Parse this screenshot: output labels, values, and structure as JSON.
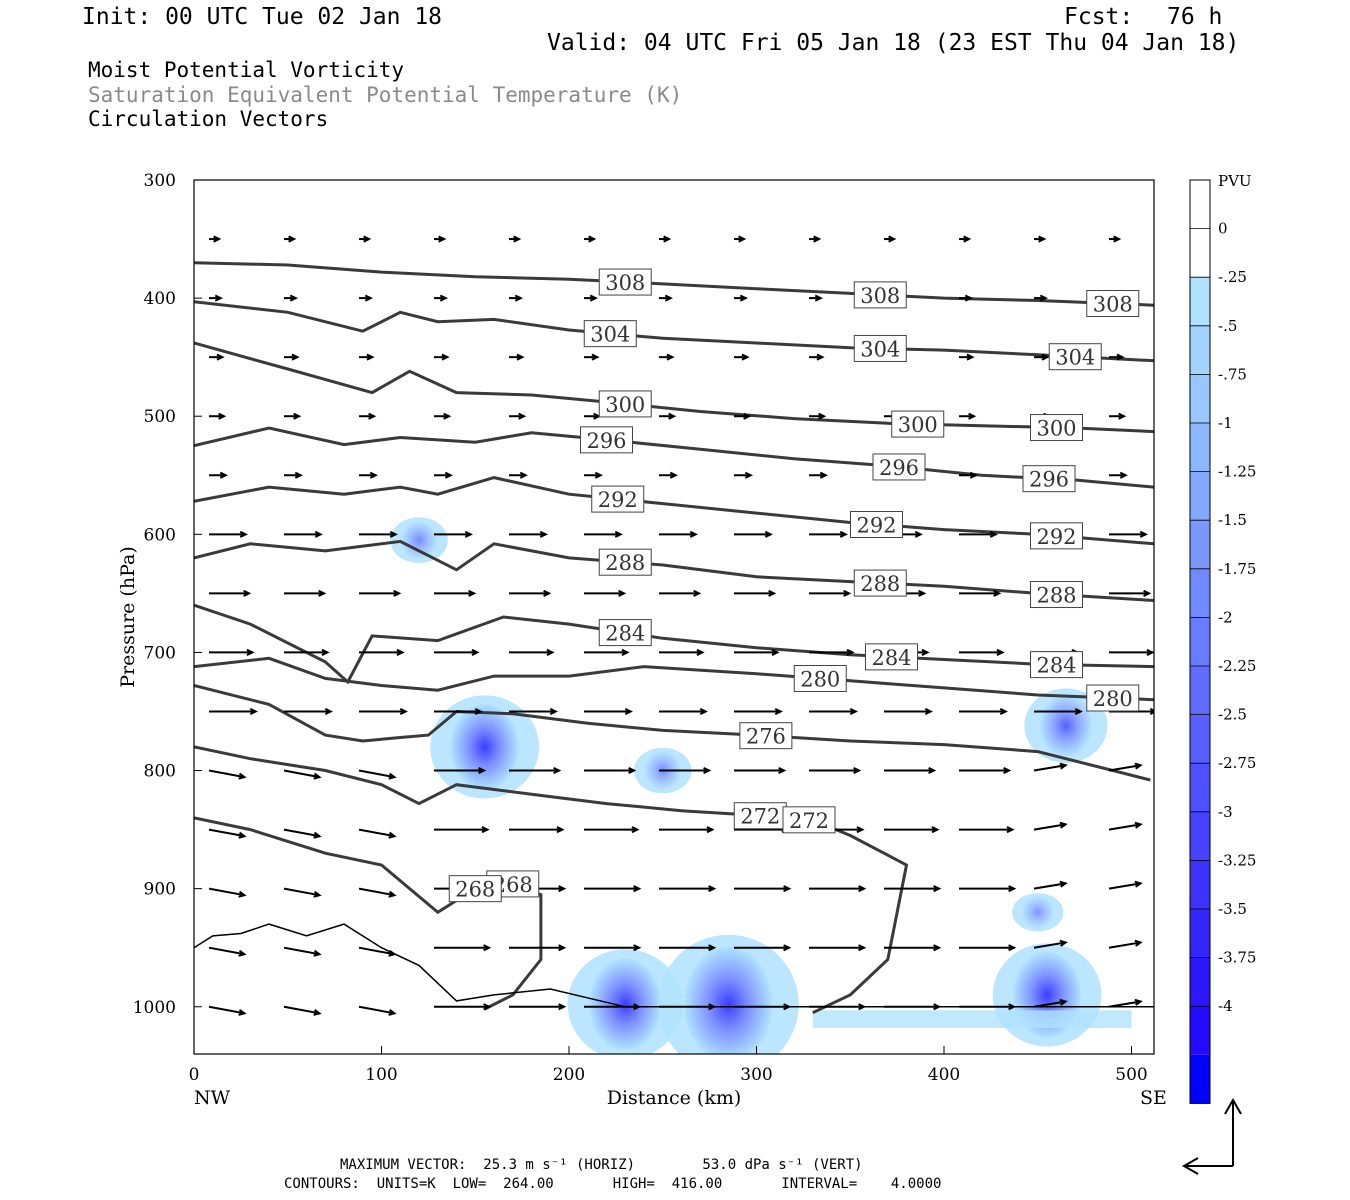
{
  "header": {
    "init": "Init: 00 UTC Tue 02 Jan 18",
    "fcst_label": "Fcst:",
    "fcst_value": "76 h",
    "valid": "Valid: 04 UTC Fri 05 Jan 18 (23 EST Thu 04 Jan 18)"
  },
  "titles": {
    "line1": "Moist Potential Vorticity",
    "line2": "Saturation Equivalent Potential Temperature (K)",
    "line3": "Circulation Vectors"
  },
  "colors": {
    "contour": "#3a3a3a",
    "shading_scale": [
      "#ffffff",
      "#ffffff",
      "#b0e2ff",
      "#a3d4ff",
      "#98c6ff",
      "#8cb7ff",
      "#84a8ff",
      "#7a98ff",
      "#718aff",
      "#697cff",
      "#5f6cff",
      "#585fff",
      "#4f50ff",
      "#4642ff",
      "#3d33ff",
      "#3525ff",
      "#2c17ff",
      "#240aff",
      "#0000ff"
    ]
  },
  "footer": {
    "max_vector": "MAXIMUM VECTOR:  25.3 m s⁻¹ (HORIZ)        53.0 dPa s⁻¹ (VERT)",
    "contours": "CONTOURS:  UNITS=K  LOW=  264.00       HIGH=  416.00       INTERVAL=    4.0000"
  },
  "chart_data": {
    "type": "cross-section",
    "xlabel": "Distance (km)",
    "ylabel": "Pressure (hPa)",
    "xlim": [
      0,
      512
    ],
    "ylim": [
      1040,
      300
    ],
    "x_ticks": [
      0,
      100,
      200,
      300,
      400,
      500
    ],
    "y_ticks": [
      300,
      400,
      500,
      600,
      700,
      800,
      900,
      1000
    ],
    "x_end_labels": {
      "left": "NW",
      "right": "SE"
    },
    "colorbar": {
      "unit": "PVU",
      "labels": [
        "0",
        "-.25",
        "-.5",
        "-.75",
        "-1",
        "-1.25",
        "-1.5",
        "-1.75",
        "-2",
        "-2.25",
        "-2.5",
        "-2.75",
        "-3",
        "-3.25",
        "-3.5",
        "-3.75",
        "-4"
      ]
    },
    "theta_es_contours": [
      {
        "level": 308,
        "label_positions_km": [
          230,
          366,
          490
        ],
        "p_hPa": [
          [
            0,
            370
          ],
          [
            50,
            372
          ],
          [
            100,
            378
          ],
          [
            150,
            382
          ],
          [
            200,
            384
          ],
          [
            250,
            388
          ],
          [
            300,
            392
          ],
          [
            350,
            396
          ],
          [
            400,
            400
          ],
          [
            450,
            402
          ],
          [
            512,
            406
          ]
        ]
      },
      {
        "level": 304,
        "label_positions_km": [
          222,
          366,
          470
        ],
        "p_hPa": [
          [
            0,
            403
          ],
          [
            50,
            412
          ],
          [
            90,
            428
          ],
          [
            110,
            412
          ],
          [
            130,
            420
          ],
          [
            160,
            418
          ],
          [
            200,
            427
          ],
          [
            250,
            434
          ],
          [
            300,
            438
          ],
          [
            350,
            442
          ],
          [
            400,
            444
          ],
          [
            450,
            448
          ],
          [
            512,
            453
          ]
        ]
      },
      {
        "level": 300,
        "label_positions_km": [
          230,
          386,
          460
        ],
        "p_hPa": [
          [
            0,
            438
          ],
          [
            50,
            460
          ],
          [
            95,
            480
          ],
          [
            115,
            462
          ],
          [
            140,
            480
          ],
          [
            180,
            482
          ],
          [
            220,
            488
          ],
          [
            270,
            496
          ],
          [
            320,
            502
          ],
          [
            370,
            506
          ],
          [
            420,
            508
          ],
          [
            470,
            510
          ],
          [
            512,
            513
          ]
        ]
      },
      {
        "level": 296,
        "label_positions_km": [
          220,
          376,
          456
        ],
        "p_hPa": [
          [
            0,
            525
          ],
          [
            40,
            510
          ],
          [
            80,
            524
          ],
          [
            110,
            518
          ],
          [
            150,
            522
          ],
          [
            180,
            514
          ],
          [
            220,
            520
          ],
          [
            270,
            528
          ],
          [
            320,
            536
          ],
          [
            370,
            542
          ],
          [
            420,
            550
          ],
          [
            470,
            554
          ],
          [
            512,
            560
          ]
        ]
      },
      {
        "level": 292,
        "label_positions_km": [
          226,
          364,
          460
        ],
        "p_hPa": [
          [
            0,
            572
          ],
          [
            40,
            560
          ],
          [
            80,
            566
          ],
          [
            110,
            560
          ],
          [
            130,
            566
          ],
          [
            160,
            552
          ],
          [
            200,
            566
          ],
          [
            250,
            574
          ],
          [
            300,
            582
          ],
          [
            350,
            590
          ],
          [
            400,
            596
          ],
          [
            450,
            600
          ],
          [
            512,
            608
          ]
        ]
      },
      {
        "level": 288,
        "label_positions_km": [
          230,
          366,
          460
        ],
        "p_hPa": [
          [
            0,
            620
          ],
          [
            30,
            608
          ],
          [
            70,
            614
          ],
          [
            110,
            606
          ],
          [
            140,
            630
          ],
          [
            160,
            608
          ],
          [
            200,
            620
          ],
          [
            250,
            626
          ],
          [
            300,
            636
          ],
          [
            350,
            640
          ],
          [
            400,
            644
          ],
          [
            450,
            650
          ],
          [
            512,
            656
          ]
        ]
      },
      {
        "level": 284,
        "label_positions_km": [
          230,
          372,
          460
        ],
        "p_hPa": [
          [
            0,
            660
          ],
          [
            30,
            676
          ],
          [
            70,
            708
          ],
          [
            82,
            725
          ],
          [
            95,
            686
          ],
          [
            130,
            690
          ],
          [
            165,
            670
          ],
          [
            200,
            676
          ],
          [
            250,
            688
          ],
          [
            300,
            696
          ],
          [
            350,
            702
          ],
          [
            400,
            706
          ],
          [
            450,
            710
          ],
          [
            512,
            712
          ]
        ]
      },
      {
        "level": 280,
        "label_positions_km": [
          334,
          490
        ],
        "p_hPa": [
          [
            0,
            712
          ],
          [
            40,
            705
          ],
          [
            70,
            722
          ],
          [
            100,
            728
          ],
          [
            130,
            732
          ],
          [
            160,
            720
          ],
          [
            200,
            720
          ],
          [
            240,
            712
          ],
          [
            300,
            718
          ],
          [
            350,
            724
          ],
          [
            400,
            730
          ],
          [
            450,
            736
          ],
          [
            512,
            740
          ]
        ]
      },
      {
        "level": 276,
        "label_positions_km": [
          305
        ],
        "p_hPa": [
          [
            0,
            728
          ],
          [
            40,
            744
          ],
          [
            70,
            770
          ],
          [
            90,
            775
          ],
          [
            110,
            772
          ],
          [
            125,
            770
          ],
          [
            140,
            750
          ],
          [
            170,
            752
          ],
          [
            210,
            760
          ],
          [
            250,
            766
          ],
          [
            300,
            770
          ],
          [
            350,
            775
          ],
          [
            400,
            778
          ],
          [
            450,
            784
          ],
          [
            490,
            800
          ],
          [
            510,
            808
          ]
        ]
      },
      {
        "level": 272,
        "label_positions_km": [
          302,
          328
        ],
        "p_hPa": [
          [
            0,
            780
          ],
          [
            30,
            790
          ],
          [
            70,
            800
          ],
          [
            100,
            812
          ],
          [
            120,
            828
          ],
          [
            140,
            812
          ],
          [
            180,
            820
          ],
          [
            220,
            828
          ],
          [
            260,
            834
          ],
          [
            300,
            838
          ],
          [
            330,
            842
          ],
          [
            350,
            855
          ],
          [
            380,
            880
          ],
          [
            370,
            960
          ],
          [
            350,
            990
          ],
          [
            330,
            1005
          ]
        ]
      },
      {
        "level": 268,
        "label_positions_km": [
          170,
          150
        ],
        "p_hPa": [
          [
            0,
            840
          ],
          [
            30,
            850
          ],
          [
            70,
            870
          ],
          [
            100,
            880
          ],
          [
            115,
            900
          ],
          [
            130,
            920
          ],
          [
            160,
            890
          ],
          [
            185,
            905
          ],
          [
            185,
            960
          ],
          [
            170,
            990
          ],
          [
            155,
            1002
          ]
        ]
      }
    ],
    "mpv_shaded_regions": [
      {
        "center_km": 155,
        "center_hPa": 780,
        "min_PVU": -2.75
      },
      {
        "center_km": 120,
        "center_hPa": 605,
        "min_PVU": -0.75
      },
      {
        "center_km": 250,
        "center_hPa": 800,
        "min_PVU": -0.75
      },
      {
        "center_km": 465,
        "center_hPa": 762,
        "min_PVU": -1.75
      },
      {
        "center_km": 230,
        "center_hPa": 998,
        "min_PVU": -3.0
      },
      {
        "center_km": 285,
        "center_hPa": 998,
        "min_PVU": -4.0
      },
      {
        "center_km": 455,
        "center_hPa": 990,
        "min_PVU": -2.75
      },
      {
        "center_km": 450,
        "center_hPa": 920,
        "min_PVU": -0.5
      }
    ]
  }
}
